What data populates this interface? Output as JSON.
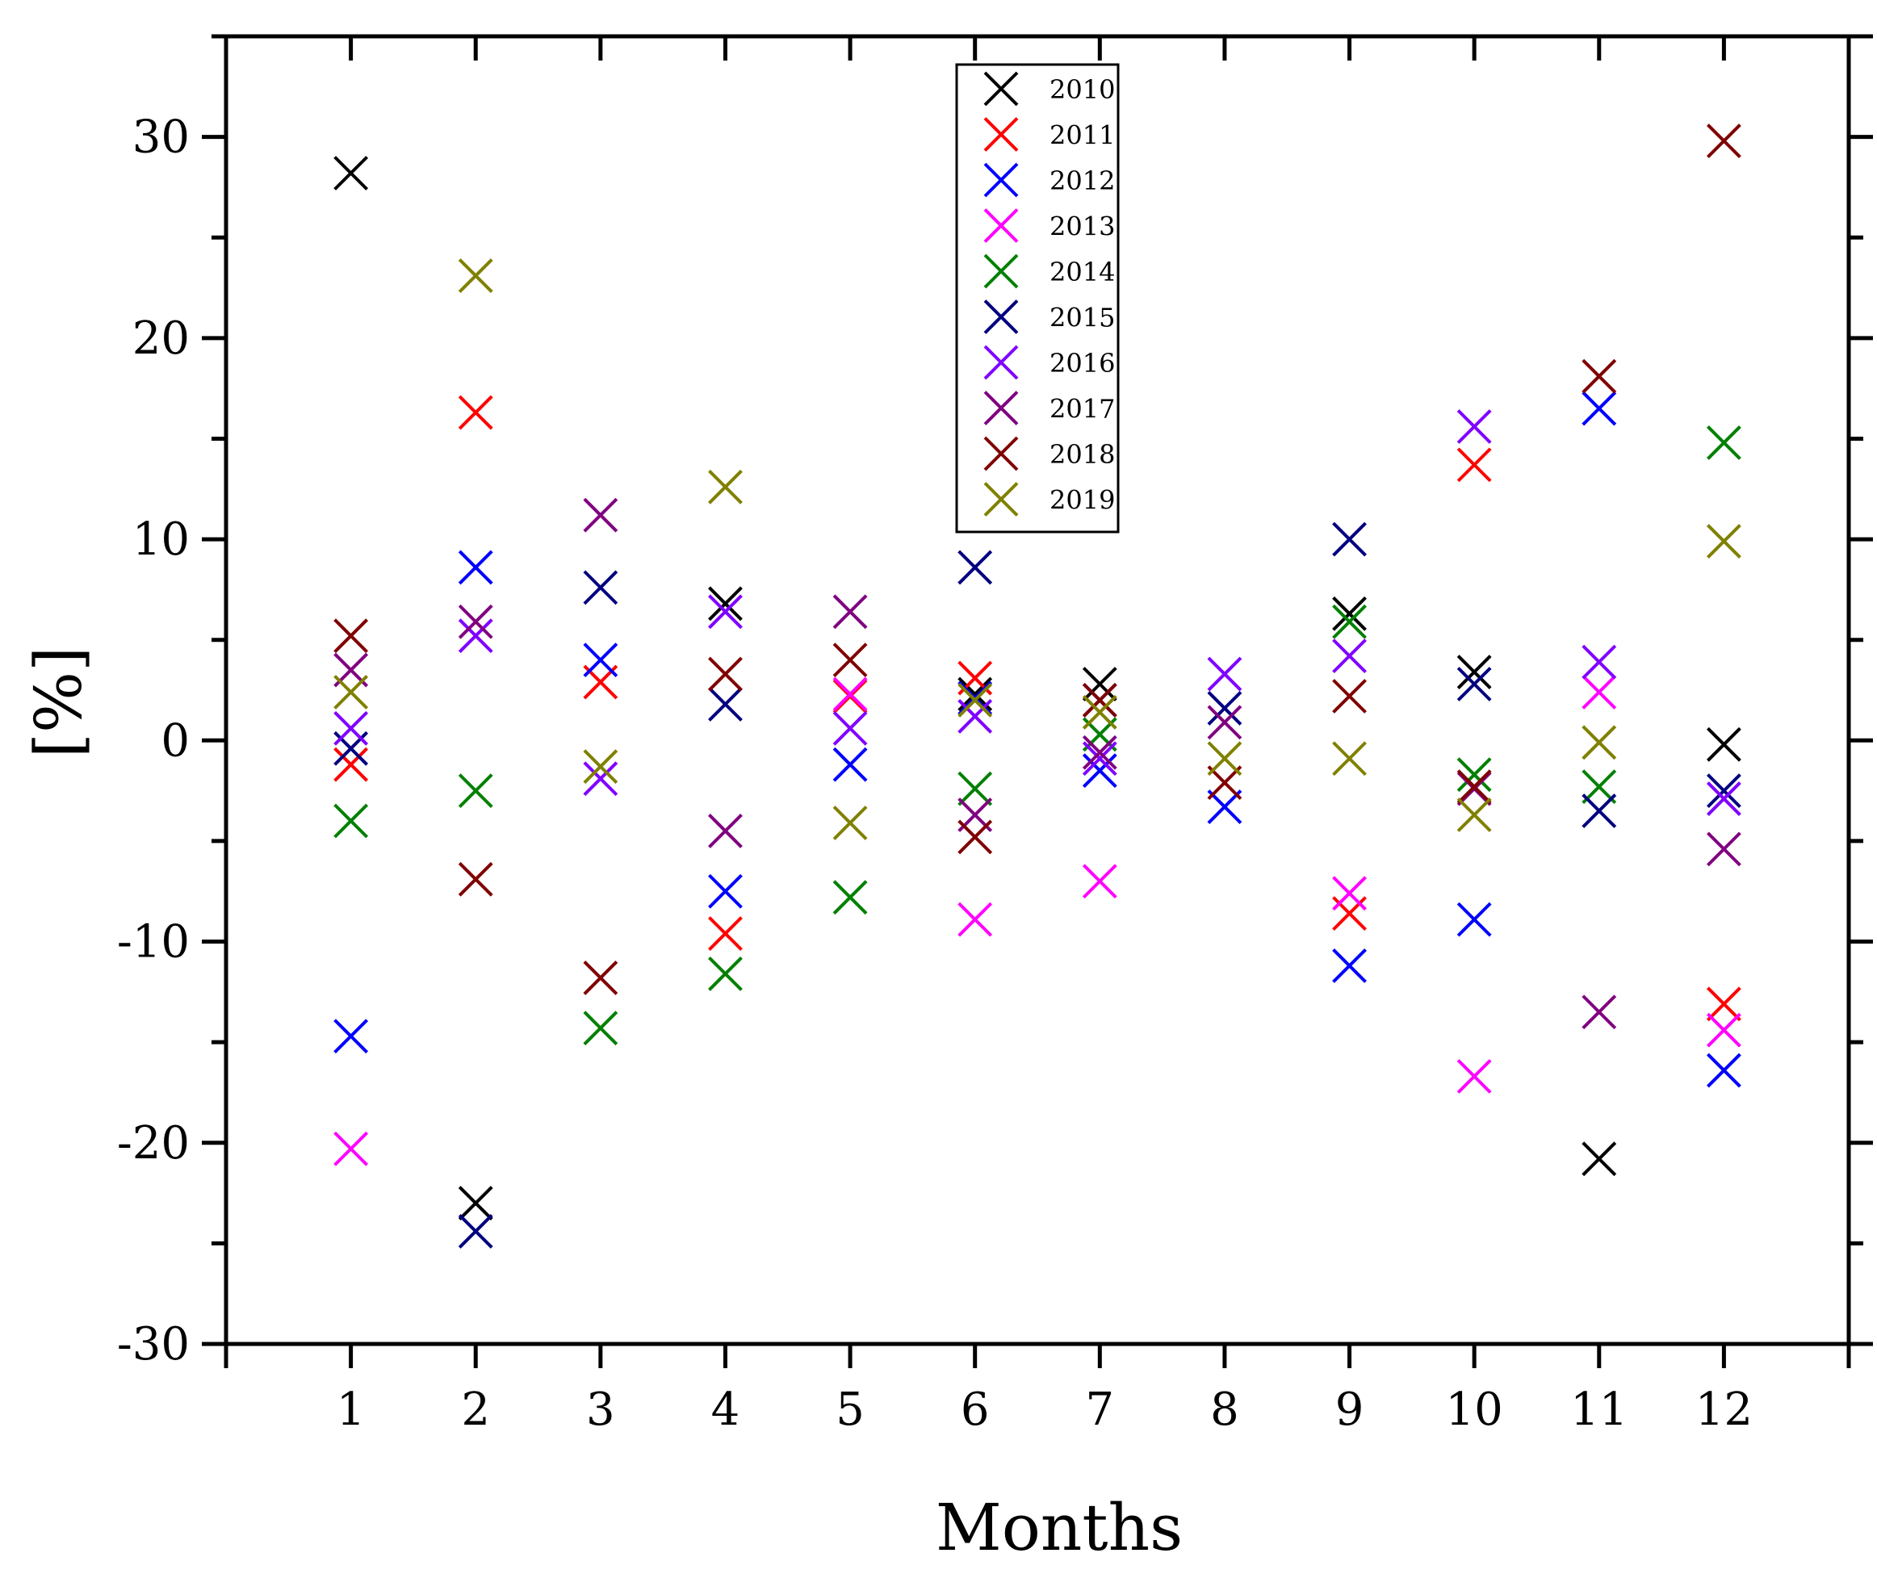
{
  "chart_data": {
    "type": "scatter",
    "title": "",
    "xlabel": "Months",
    "ylabel": "[%]",
    "xlim": [
      0,
      13
    ],
    "ylim": [
      -30,
      35
    ],
    "x": [
      1,
      2,
      3,
      4,
      5,
      6,
      7,
      8,
      9,
      10,
      11,
      12
    ],
    "xticks": [
      1,
      2,
      3,
      4,
      5,
      6,
      7,
      8,
      9,
      10,
      11,
      12
    ],
    "yticks": [
      -30,
      -20,
      -10,
      0,
      10,
      20,
      30
    ],
    "xtick_labels": [
      "1",
      "2",
      "3",
      "4",
      "5",
      "6",
      "7",
      "8",
      "9",
      "10",
      "11",
      "12"
    ],
    "ytick_labels": [
      "-30",
      "-20",
      "-10",
      "0",
      "10",
      "20",
      "30"
    ],
    "marker": "x",
    "grid": false,
    "legend_position": "top-center",
    "series": [
      {
        "name": "2010",
        "color": "#000000",
        "values": [
          28.2,
          -23.0,
          null,
          6.8,
          null,
          2.3,
          2.8,
          null,
          6.3,
          3.4,
          -20.8,
          -0.2
        ]
      },
      {
        "name": "2011",
        "color": "#ff0000",
        "values": [
          -1.2,
          16.3,
          2.9,
          -9.6,
          2.2,
          3.1,
          null,
          null,
          -8.6,
          13.7,
          null,
          -13.1
        ]
      },
      {
        "name": "2012",
        "color": "#0000ff",
        "values": [
          -14.7,
          8.6,
          4.0,
          -7.5,
          -1.2,
          2.1,
          -1.5,
          -3.3,
          -11.2,
          -8.9,
          16.5,
          -16.4
        ]
      },
      {
        "name": "2013",
        "color": "#ff00ff",
        "values": [
          -20.3,
          null,
          null,
          null,
          2.3,
          -8.9,
          -7.0,
          null,
          -7.6,
          -16.7,
          2.4,
          -14.4
        ]
      },
      {
        "name": "2014",
        "color": "#008000",
        "values": [
          -4.0,
          -2.5,
          -14.3,
          -11.6,
          -7.8,
          -2.4,
          0.3,
          null,
          5.9,
          -1.7,
          -2.3,
          14.8
        ]
      },
      {
        "name": "2015",
        "color": "#000080",
        "values": [
          -0.4,
          -24.4,
          7.6,
          1.8,
          null,
          8.6,
          2.0,
          1.6,
          10.0,
          2.8,
          -3.5,
          -2.5
        ]
      },
      {
        "name": "2016",
        "color": "#8000ff",
        "values": [
          0.6,
          5.2,
          -1.9,
          6.4,
          0.6,
          1.2,
          -0.9,
          3.3,
          4.2,
          15.6,
          3.9,
          -2.9
        ]
      },
      {
        "name": "2017",
        "color": "#800080",
        "values": [
          3.5,
          5.9,
          11.2,
          -4.5,
          6.4,
          -3.7,
          -0.6,
          0.9,
          null,
          -2.4,
          -13.5,
          -5.4
        ]
      },
      {
        "name": "2018",
        "color": "#800000",
        "values": [
          5.2,
          -6.9,
          -11.8,
          3.3,
          4.0,
          -4.8,
          2.0,
          -2.1,
          2.2,
          -2.3,
          18.1,
          29.8
        ]
      },
      {
        "name": "2019",
        "color": "#808000",
        "values": [
          2.4,
          23.1,
          -1.3,
          12.6,
          -4.1,
          2.0,
          1.4,
          -0.9,
          -0.9,
          -3.7,
          -0.1,
          9.9
        ]
      }
    ]
  }
}
